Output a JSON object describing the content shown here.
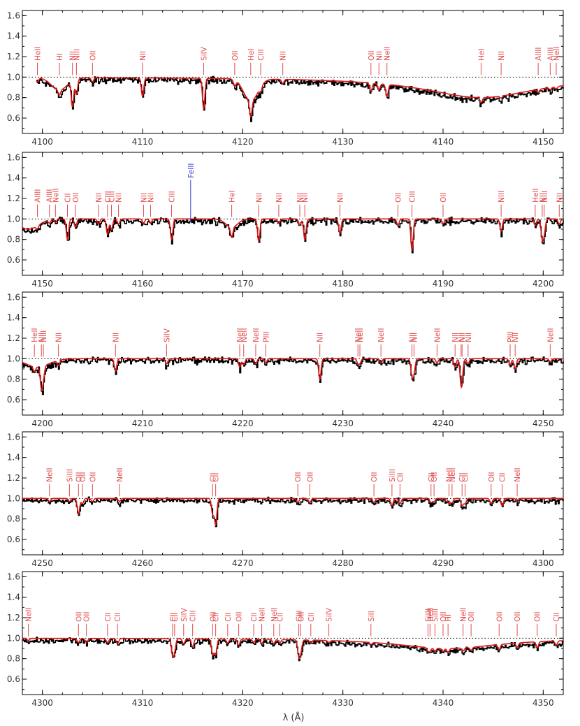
{
  "xlabel": "λ (Å)",
  "colors": {
    "observed": "#000000",
    "model": "#e11414",
    "label": "#e24a4a",
    "fe_label": "#3b3bd8",
    "continuum": "#000000"
  },
  "chart_data": [
    {
      "type": "line",
      "xlim": [
        4098,
        4152
      ],
      "ylim": [
        0.45,
        1.65
      ],
      "xticks": [
        4100,
        4110,
        4120,
        4130,
        4140,
        4150
      ],
      "yticks": [
        0.6,
        0.8,
        1.0,
        1.2,
        1.4,
        1.6
      ],
      "continuum": 1.0,
      "noise": 0.025,
      "broad": [
        {
          "c": 4101.7,
          "d": 0.12,
          "w": 0.8
        },
        {
          "c": 4120.8,
          "d": 0.22,
          "w": 0.7
        },
        {
          "c": 4143.8,
          "d": 0.2,
          "w": 7.0,
          "lor": true
        }
      ],
      "lines": [
        {
          "w": 4099.5,
          "name": "HeII",
          "d": 0.04
        },
        {
          "w": 4101.7,
          "name": "HI",
          "d": 0.05
        },
        {
          "w": 4103.0,
          "name": "NII",
          "d": 0.25
        },
        {
          "w": 4103.4,
          "name": "NIII",
          "d": 0.15
        },
        {
          "w": 4105.0,
          "name": "OII",
          "d": 0.04
        },
        {
          "w": 4110.0,
          "name": "NII",
          "d": 0.18
        },
        {
          "w": 4116.1,
          "name": "SiIV",
          "d": 0.3
        },
        {
          "w": 4119.2,
          "name": "OII",
          "d": 0.06
        },
        {
          "w": 4120.8,
          "name": "HeI",
          "d": 0.15
        },
        {
          "w": 4121.8,
          "name": "CIII",
          "d": 0.05
        },
        {
          "w": 4124.0,
          "name": "NII",
          "d": 0.04
        },
        {
          "w": 4132.8,
          "name": "OII",
          "d": 0.08
        },
        {
          "w": 4133.6,
          "name": "NII",
          "d": 0.06
        },
        {
          "w": 4134.4,
          "name": "NeII",
          "d": 0.12
        },
        {
          "w": 4143.8,
          "name": "HeI",
          "d": 0.05
        },
        {
          "w": 4145.8,
          "name": "NII",
          "d": 0.02
        },
        {
          "w": 4149.5,
          "name": "AlIII",
          "d": 0.03
        },
        {
          "w": 4150.7,
          "name": "AlIII",
          "d": 0.02
        },
        {
          "w": 4151.3,
          "name": "NeII",
          "d": 0.02
        }
      ]
    },
    {
      "type": "line",
      "xlim": [
        4148,
        4202
      ],
      "ylim": [
        0.45,
        1.65
      ],
      "xticks": [
        4150,
        4160,
        4170,
        4180,
        4190,
        4200
      ],
      "yticks": [
        0.6,
        0.8,
        1.0,
        1.2,
        1.4,
        1.6
      ],
      "continuum": 1.0,
      "noise": 0.025,
      "broad": [
        {
          "c": 4148.6,
          "d": 0.1,
          "w": 1.0
        },
        {
          "c": 4168.9,
          "d": 0.08,
          "w": 0.6
        }
      ],
      "lines": [
        {
          "w": 4149.5,
          "name": "AlIII",
          "d": 0.03
        },
        {
          "w": 4150.7,
          "name": "AlIII",
          "d": 0.03
        },
        {
          "w": 4151.3,
          "name": "NeII",
          "d": 0.03
        },
        {
          "w": 4152.5,
          "name": "CII",
          "d": 0.2
        },
        {
          "w": 4153.3,
          "name": "OII",
          "d": 0.08
        },
        {
          "w": 4155.6,
          "name": "NII",
          "d": 0.05
        },
        {
          "w": 4156.5,
          "name": "CIII",
          "d": 0.15
        },
        {
          "w": 4156.9,
          "name": "CIII",
          "d": 0.1
        },
        {
          "w": 4157.6,
          "name": "NII",
          "d": 0.05
        },
        {
          "w": 4160.1,
          "name": "NII",
          "d": 0.04
        },
        {
          "w": 4160.8,
          "name": "NII",
          "d": 0.04
        },
        {
          "w": 4162.9,
          "name": "CIII",
          "d": 0.2
        },
        {
          "w": 4168.9,
          "name": "HeI",
          "d": 0.1
        },
        {
          "w": 4171.6,
          "name": "NII",
          "d": 0.22
        },
        {
          "w": 4173.6,
          "name": "NII",
          "d": 0.04
        },
        {
          "w": 4175.7,
          "name": "NII",
          "d": 0.06
        },
        {
          "w": 4176.2,
          "name": "NII",
          "d": 0.2
        },
        {
          "w": 4179.7,
          "name": "NII",
          "d": 0.14
        },
        {
          "w": 4185.5,
          "name": "OII",
          "d": 0.06
        },
        {
          "w": 4186.9,
          "name": "CIII",
          "d": 0.3
        },
        {
          "w": 4190.0,
          "name": "OII",
          "d": 0.05
        },
        {
          "w": 4195.8,
          "name": "NIII",
          "d": 0.12
        },
        {
          "w": 4199.2,
          "name": "HeII",
          "d": 0.06
        },
        {
          "w": 4199.9,
          "name": "NII",
          "d": 0.18
        },
        {
          "w": 4200.1,
          "name": "NIII",
          "d": 0.12
        },
        {
          "w": 4201.6,
          "name": "NII",
          "d": 0.05
        }
      ],
      "extra": [
        {
          "w": 4164.8,
          "name": "FeIII"
        }
      ]
    },
    {
      "type": "line",
      "xlim": [
        4198,
        4252
      ],
      "ylim": [
        0.45,
        1.65
      ],
      "xticks": [
        4200,
        4210,
        4220,
        4230,
        4240,
        4250
      ],
      "yticks": [
        0.6,
        0.8,
        1.0,
        1.2,
        1.4,
        1.6
      ],
      "continuum": 1.0,
      "noise": 0.025,
      "broad": [
        {
          "c": 4199.5,
          "d": 0.08,
          "w": 1.2
        }
      ],
      "lines": [
        {
          "w": 4199.2,
          "name": "HeII",
          "d": 0.05
        },
        {
          "w": 4199.9,
          "name": "NII",
          "d": 0.2
        },
        {
          "w": 4200.1,
          "name": "NIII",
          "d": 0.1
        },
        {
          "w": 4201.6,
          "name": "NII",
          "d": 0.05
        },
        {
          "w": 4207.3,
          "name": "NII",
          "d": 0.12
        },
        {
          "w": 4212.4,
          "name": "SiIV",
          "d": 0.05
        },
        {
          "w": 4219.7,
          "name": "NeII",
          "d": 0.08
        },
        {
          "w": 4220.1,
          "name": "NeII",
          "d": 0.06
        },
        {
          "w": 4221.3,
          "name": "NeII",
          "d": 0.05
        },
        {
          "w": 4222.3,
          "name": "PIII",
          "d": 0.04
        },
        {
          "w": 4227.7,
          "name": "NII",
          "d": 0.2
        },
        {
          "w": 4231.5,
          "name": "NeII",
          "d": 0.04
        },
        {
          "w": 4231.7,
          "name": "NeII",
          "d": 0.04
        },
        {
          "w": 4233.8,
          "name": "NeII",
          "d": 0.04
        },
        {
          "w": 4236.9,
          "name": "NII",
          "d": 0.15
        },
        {
          "w": 4237.1,
          "name": "NII",
          "d": 0.12
        },
        {
          "w": 4239.4,
          "name": "NeII",
          "d": 0.04
        },
        {
          "w": 4241.2,
          "name": "NII",
          "d": 0.08
        },
        {
          "w": 4241.8,
          "name": "NII",
          "d": 0.2
        },
        {
          "w": 4241.9,
          "name": "NII",
          "d": 0.1
        },
        {
          "w": 4242.5,
          "name": "NII",
          "d": 0.05
        },
        {
          "w": 4246.7,
          "name": "PIII",
          "d": 0.06
        },
        {
          "w": 4247.2,
          "name": "NII",
          "d": 0.1
        },
        {
          "w": 4250.7,
          "name": "NeII",
          "d": 0.03
        }
      ]
    },
    {
      "type": "line",
      "xlim": [
        4248,
        4302
      ],
      "ylim": [
        0.45,
        1.65
      ],
      "xticks": [
        4250,
        4260,
        4270,
        4280,
        4290,
        4300
      ],
      "yticks": [
        0.6,
        0.8,
        1.0,
        1.2,
        1.4,
        1.6
      ],
      "continuum": 1.0,
      "noise": 0.022,
      "broad": [],
      "lines": [
        {
          "w": 4250.7,
          "name": "NeII",
          "d": 0.03
        },
        {
          "w": 4252.7,
          "name": "SiIII",
          "d": 0.03
        },
        {
          "w": 4253.6,
          "name": "OII",
          "d": 0.15
        },
        {
          "w": 4254.0,
          "name": "OII",
          "d": 0.05
        },
        {
          "w": 4255.0,
          "name": "OII",
          "d": 0.03
        },
        {
          "w": 4257.7,
          "name": "NeII",
          "d": 0.03
        },
        {
          "w": 4267.0,
          "name": "CII",
          "d": 0.15
        },
        {
          "w": 4267.3,
          "name": "CII",
          "d": 0.25
        },
        {
          "w": 4275.5,
          "name": "OII",
          "d": 0.04
        },
        {
          "w": 4276.7,
          "name": "OII",
          "d": 0.04
        },
        {
          "w": 4283.1,
          "name": "OII",
          "d": 0.04
        },
        {
          "w": 4284.9,
          "name": "SiIII",
          "d": 0.07
        },
        {
          "w": 4285.7,
          "name": "CII",
          "d": 0.05
        },
        {
          "w": 4288.8,
          "name": "CII",
          "d": 0.04
        },
        {
          "w": 4289.1,
          "name": "OII",
          "d": 0.03
        },
        {
          "w": 4290.6,
          "name": "NeII",
          "d": 0.05
        },
        {
          "w": 4290.9,
          "name": "NeII",
          "d": 0.04
        },
        {
          "w": 4291.9,
          "name": "CII",
          "d": 0.07
        },
        {
          "w": 4292.2,
          "name": "CII",
          "d": 0.05
        },
        {
          "w": 4294.8,
          "name": "OII",
          "d": 0.05
        },
        {
          "w": 4295.9,
          "name": "CII",
          "d": 0.07
        },
        {
          "w": 4297.4,
          "name": "NeII",
          "d": 0.03
        }
      ]
    },
    {
      "type": "line",
      "xlim": [
        4298,
        4352
      ],
      "ylim": [
        0.45,
        1.65
      ],
      "xticks": [
        4300,
        4310,
        4320,
        4330,
        4340,
        4350
      ],
      "yticks": [
        0.6,
        0.8,
        1.0,
        1.2,
        1.4,
        1.6
      ],
      "continuum": 1.0,
      "noise": 0.022,
      "broad": [
        {
          "c": 4340.5,
          "d": 0.1,
          "w": 6.5,
          "lor": true
        }
      ],
      "lines": [
        {
          "w": 4298.6,
          "name": "NeII",
          "d": 0.02
        },
        {
          "w": 4303.6,
          "name": "OII",
          "d": 0.04
        },
        {
          "w": 4304.4,
          "name": "OII",
          "d": 0.04
        },
        {
          "w": 4306.5,
          "name": "CII",
          "d": 0.04
        },
        {
          "w": 4307.5,
          "name": "CII",
          "d": 0.05
        },
        {
          "w": 4313.0,
          "name": "CII",
          "d": 0.15
        },
        {
          "w": 4313.2,
          "name": "CII",
          "d": 0.1
        },
        {
          "w": 4314.1,
          "name": "SiIV",
          "d": 0.05
        },
        {
          "w": 4315.0,
          "name": "CIII",
          "d": 0.08
        },
        {
          "w": 4317.0,
          "name": "OII",
          "d": 0.15
        },
        {
          "w": 4317.3,
          "name": "CII",
          "d": 0.15
        },
        {
          "w": 4318.5,
          "name": "CII",
          "d": 0.04
        },
        {
          "w": 4319.6,
          "name": "OII",
          "d": 0.06
        },
        {
          "w": 4321.1,
          "name": "CII",
          "d": 0.03
        },
        {
          "w": 4321.9,
          "name": "NeII",
          "d": 0.04
        },
        {
          "w": 4323.1,
          "name": "NeII",
          "d": 0.04
        },
        {
          "w": 4323.7,
          "name": "CII",
          "d": 0.03
        },
        {
          "w": 4325.6,
          "name": "CIII",
          "d": 0.15
        },
        {
          "w": 4325.8,
          "name": "OII",
          "d": 0.1
        },
        {
          "w": 4326.8,
          "name": "CII",
          "d": 0.03
        },
        {
          "w": 4328.6,
          "name": "SiIV",
          "d": 0.02
        },
        {
          "w": 4332.8,
          "name": "SiII",
          "d": 0.02
        },
        {
          "w": 4338.5,
          "name": "SiIII",
          "d": 0.03
        },
        {
          "w": 4338.7,
          "name": "HeII",
          "d": 0.03
        },
        {
          "w": 4339.2,
          "name": "SiIII",
          "d": 0.03
        },
        {
          "w": 4340.0,
          "name": "OII",
          "d": 0.03
        },
        {
          "w": 4340.5,
          "name": "HI",
          "d": 0.04
        },
        {
          "w": 4342.0,
          "name": "NeII",
          "d": 0.03
        },
        {
          "w": 4342.8,
          "name": "OII",
          "d": 0.03
        },
        {
          "w": 4345.6,
          "name": "OII",
          "d": 0.05
        },
        {
          "w": 4347.4,
          "name": "OII",
          "d": 0.04
        },
        {
          "w": 4349.4,
          "name": "OII",
          "d": 0.06
        },
        {
          "w": 4351.3,
          "name": "CII",
          "d": 0.04
        }
      ]
    }
  ]
}
